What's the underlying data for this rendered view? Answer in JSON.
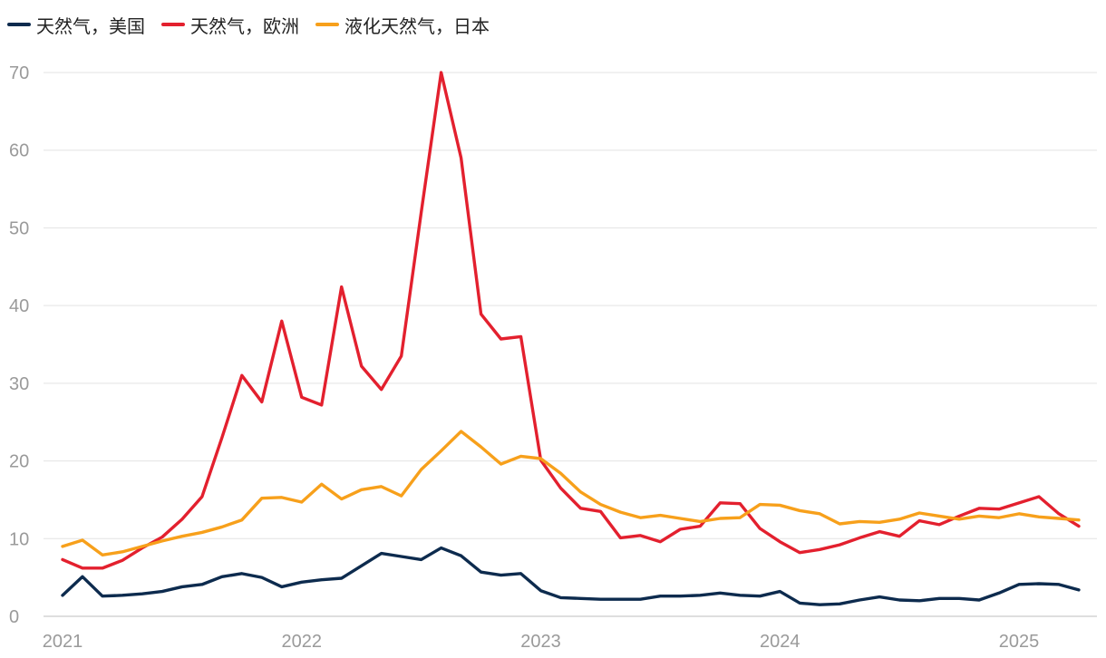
{
  "chart_data": {
    "type": "line",
    "title": "",
    "xlabel": "",
    "ylabel": "",
    "ylim": [
      0,
      70
    ],
    "yticks": [
      0,
      10,
      20,
      30,
      40,
      50,
      60,
      70
    ],
    "xticks": [
      "2021",
      "2022",
      "2023",
      "2024",
      "2025"
    ],
    "grid": "horizontal",
    "legend": "top-left",
    "x": [
      "2021-01",
      "2021-02",
      "2021-03",
      "2021-04",
      "2021-05",
      "2021-06",
      "2021-07",
      "2021-08",
      "2021-09",
      "2021-10",
      "2021-11",
      "2021-12",
      "2022-01",
      "2022-02",
      "2022-03",
      "2022-04",
      "2022-05",
      "2022-06",
      "2022-07",
      "2022-08",
      "2022-09",
      "2022-10",
      "2022-11",
      "2022-12",
      "2023-01",
      "2023-02",
      "2023-03",
      "2023-04",
      "2023-05",
      "2023-06",
      "2023-07",
      "2023-08",
      "2023-09",
      "2023-10",
      "2023-11",
      "2023-12",
      "2024-01",
      "2024-02",
      "2024-03",
      "2024-04",
      "2024-05",
      "2024-06",
      "2024-07",
      "2024-08",
      "2024-09",
      "2024-10",
      "2024-11",
      "2024-12",
      "2025-01",
      "2025-02",
      "2025-03",
      "2025-04"
    ],
    "series": [
      {
        "name": "天然气，美国",
        "color": "#0d2b4e",
        "values": [
          2.7,
          5.1,
          2.6,
          2.7,
          2.9,
          3.2,
          3.8,
          4.1,
          5.1,
          5.5,
          5.0,
          3.8,
          4.4,
          4.7,
          4.9,
          6.5,
          8.1,
          7.7,
          7.3,
          8.8,
          7.8,
          5.7,
          5.3,
          5.5,
          3.3,
          2.4,
          2.3,
          2.2,
          2.2,
          2.2,
          2.6,
          2.6,
          2.7,
          3.0,
          2.7,
          2.6,
          3.2,
          1.7,
          1.5,
          1.6,
          2.1,
          2.5,
          2.1,
          2.0,
          2.3,
          2.3,
          2.1,
          3.0,
          4.1,
          4.2,
          4.1,
          3.4
        ]
      },
      {
        "name": "天然气，欧洲",
        "color": "#e3202e",
        "values": [
          7.3,
          6.2,
          6.2,
          7.2,
          8.8,
          10.2,
          12.5,
          15.4,
          23.0,
          31.0,
          27.6,
          38.0,
          28.2,
          27.2,
          42.4,
          32.2,
          29.2,
          33.5,
          52.0,
          70.0,
          59.0,
          38.9,
          35.7,
          36.0,
          20.1,
          16.5,
          13.9,
          13.5,
          10.1,
          10.4,
          9.6,
          11.2,
          11.6,
          14.6,
          14.5,
          11.3,
          9.6,
          8.2,
          8.6,
          9.2,
          10.1,
          10.9,
          10.3,
          12.3,
          11.8,
          12.9,
          13.9,
          13.8,
          14.6,
          15.4,
          13.2,
          11.6
        ]
      },
      {
        "name": "液化天然气，日本",
        "color": "#f7a01b",
        "values": [
          9.0,
          9.8,
          7.9,
          8.3,
          9.0,
          9.7,
          10.3,
          10.8,
          11.5,
          12.4,
          15.2,
          15.3,
          14.7,
          17.0,
          15.1,
          16.3,
          16.7,
          15.5,
          18.9,
          21.3,
          23.8,
          21.8,
          19.6,
          20.6,
          20.3,
          18.4,
          16.0,
          14.4,
          13.4,
          12.7,
          13.0,
          12.6,
          12.2,
          12.6,
          12.7,
          14.4,
          14.3,
          13.6,
          13.2,
          11.9,
          12.2,
          12.1,
          12.5,
          13.3,
          12.9,
          12.5,
          12.9,
          12.7,
          13.2,
          12.8,
          12.6,
          12.4
        ]
      }
    ]
  }
}
